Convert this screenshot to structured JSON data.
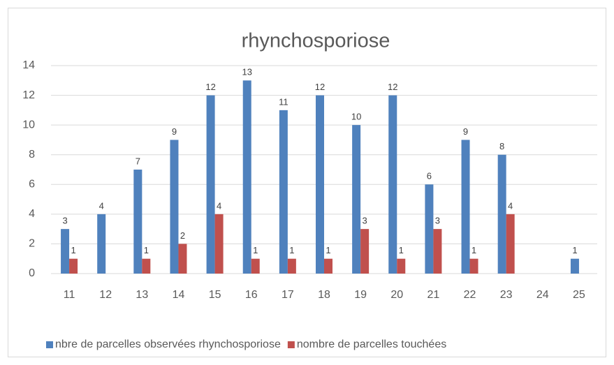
{
  "chart_data": {
    "type": "bar",
    "title": "rhynchosporiose",
    "categories": [
      "11",
      "12",
      "13",
      "14",
      "15",
      "16",
      "17",
      "18",
      "19",
      "20",
      "21",
      "22",
      "23",
      "24",
      "25"
    ],
    "series": [
      {
        "name": "nbre de parcelles observées rhynchosporiose",
        "color": "#4f81bd",
        "values": [
          3,
          4,
          7,
          9,
          12,
          13,
          11,
          12,
          10,
          12,
          6,
          9,
          8,
          null,
          1
        ]
      },
      {
        "name": "nombre de parcelles touchées",
        "color": "#c0504d",
        "values": [
          1,
          null,
          1,
          2,
          4,
          1,
          1,
          1,
          3,
          1,
          3,
          1,
          4,
          null,
          null
        ]
      }
    ],
    "ylim": [
      0,
      14
    ],
    "yticks": [
      0,
      2,
      4,
      6,
      8,
      10,
      12,
      14
    ],
    "grid": true,
    "legend": "bottom"
  }
}
